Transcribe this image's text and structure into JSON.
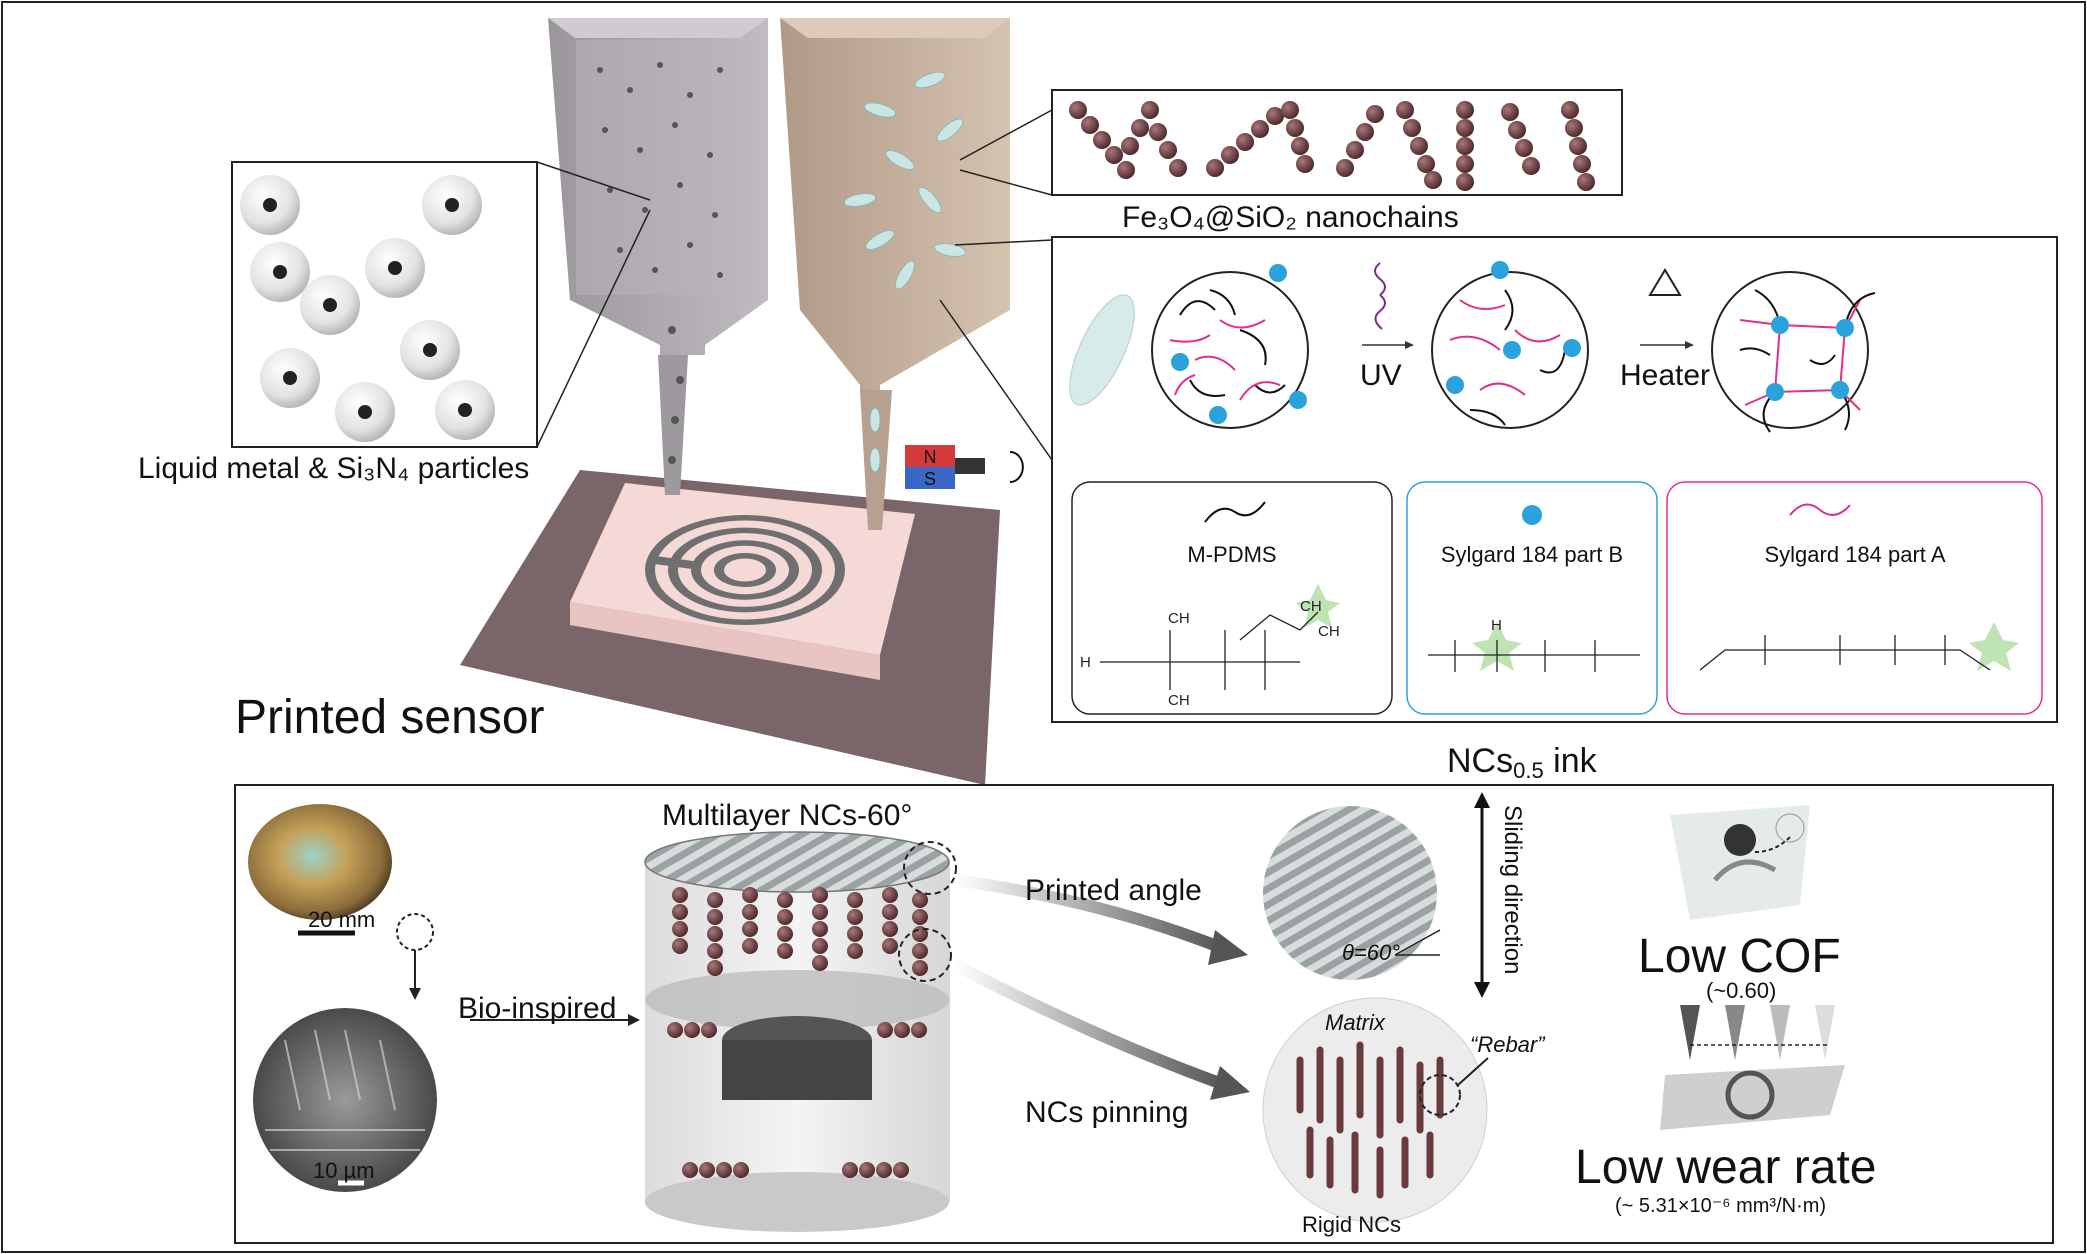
{
  "labels": {
    "lm_particles": "Liquid metal & Si₃N₄ particles",
    "nanochains": "Fe₃O₄@SiO₂ nanochains",
    "printed_sensor": "Printed sensor",
    "uv": "UV",
    "heater": "Heater",
    "ink": "NCs",
    "ink_sub": "0.5",
    "ink_suffix": " ink",
    "magnet_n": "N",
    "magnet_s": "S"
  },
  "components": [
    {
      "name": "M-PDMS",
      "color": "#111111"
    },
    {
      "name": "Sylgard 184 part B",
      "color": "#2aa3dd"
    },
    {
      "name": "Sylgard 184 part A",
      "color": "#e0308a"
    }
  ],
  "bottom": {
    "scale_shell": "20 mm",
    "scale_sem": "10 µm",
    "bio_inspired": "Bio-inspired",
    "multilayer": "Multilayer NCs-60°",
    "printed_angle": "Printed angle",
    "ncs_pinning": "NCs pinning",
    "sliding_direction": "Sliding direction",
    "theta": "θ=60°",
    "matrix": "Matrix",
    "rebar": "“Rebar”",
    "rigid_ncs": "Rigid NCs",
    "low_cof": "Low COF",
    "cof_value": "(~0.60)",
    "low_wear": "Low wear rate",
    "wear_value": "(~ 5.31×10⁻⁶ mm³/N·m)"
  },
  "colors": {
    "pink": "#e0308a",
    "blue": "#2aa3dd",
    "bead": "#6b3a3e",
    "platform": "#7a6668",
    "substrate": "#f4d9d7"
  }
}
